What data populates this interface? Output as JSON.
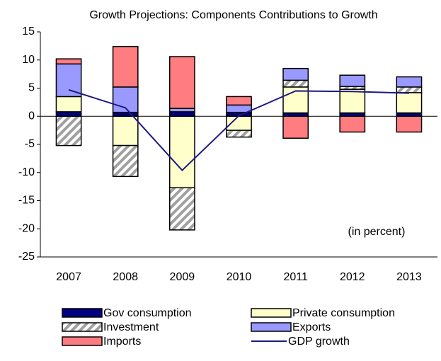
{
  "chart_data": {
    "type": "bar",
    "stacked": true,
    "title": "Growth Projections: Components Contributions to Growth",
    "annotation": "(in percent)",
    "categories": [
      "2007",
      "2008",
      "2009",
      "2010",
      "2011",
      "2012",
      "2013"
    ],
    "series": [
      {
        "name": "Gov consumption",
        "color": "#000080",
        "values": [
          0.8,
          0.7,
          0.8,
          0.7,
          0.6,
          0.6,
          0.6
        ]
      },
      {
        "name": "Private consumption",
        "color": "#ffffcc",
        "values": [
          2.7,
          -5.2,
          -12.7,
          -2.5,
          4.6,
          4.2,
          3.6
        ]
      },
      {
        "name": "Investment",
        "color": "#a0a0a0",
        "hatch": true,
        "values": [
          -5.2,
          -5.5,
          -7.5,
          -1.2,
          1.2,
          0.5,
          1.0
        ]
      },
      {
        "name": "Exports",
        "color": "#9999ff",
        "values": [
          5.8,
          4.5,
          0.6,
          1.3,
          2.1,
          2.0,
          1.8
        ]
      },
      {
        "name": "Imports",
        "color": "#ff7c80",
        "values": [
          0.9,
          7.2,
          9.2,
          1.5,
          -3.9,
          -2.8,
          -2.8
        ]
      },
      {
        "name": "GDP growth",
        "color": "#1a1a80",
        "type": "line",
        "values": [
          4.7,
          1.5,
          -9.6,
          0.1,
          4.5,
          4.4,
          4.1
        ]
      }
    ],
    "ylim": [
      -25,
      15
    ],
    "yticks": [
      -25,
      -20,
      -15,
      -10,
      -5,
      0,
      5,
      10,
      15
    ],
    "grid": false
  }
}
